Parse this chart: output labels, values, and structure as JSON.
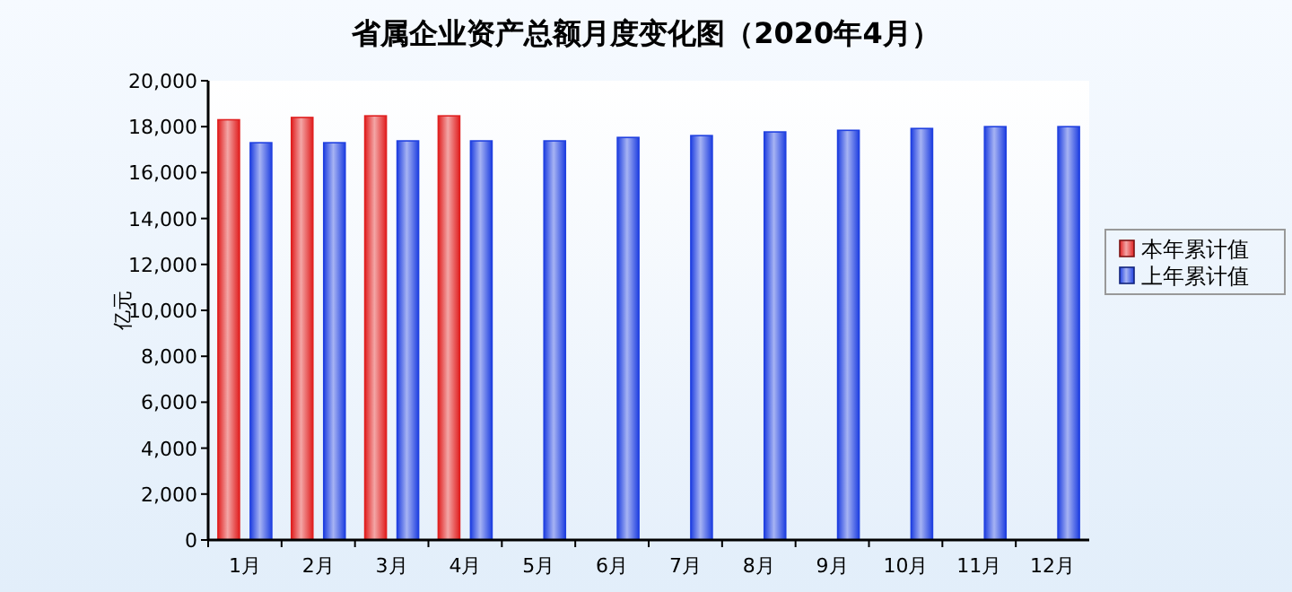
{
  "chart_data": {
    "type": "bar",
    "title": "省属企业资产总额月度变化图（2020年4月）",
    "ylabel": "亿元",
    "categories": [
      "1月",
      "2月",
      "3月",
      "4月",
      "5月",
      "6月",
      "7月",
      "8月",
      "9月",
      "10月",
      "11月",
      "12月"
    ],
    "series": [
      {
        "name": "本年累计值",
        "color": "#e02020",
        "values": [
          18300,
          18400,
          18470,
          18470,
          null,
          null,
          null,
          null,
          null,
          null,
          null,
          null
        ]
      },
      {
        "name": "上年累计值",
        "color": "#2040e0",
        "values": [
          17300,
          17300,
          17380,
          17380,
          17380,
          17530,
          17610,
          17770,
          17840,
          17920,
          18000,
          18000
        ]
      }
    ],
    "ylim": [
      0,
      20000
    ],
    "yticks": [
      {
        "value": 0,
        "label": "0"
      },
      {
        "value": 2000,
        "label": "2,000"
      },
      {
        "value": 4000,
        "label": "4,000"
      },
      {
        "value": 6000,
        "label": "6,000"
      },
      {
        "value": 8000,
        "label": "8,000"
      },
      {
        "value": 10000,
        "label": "10,000"
      },
      {
        "value": 12000,
        "label": "12,000"
      },
      {
        "value": 14000,
        "label": "14,000"
      },
      {
        "value": 16000,
        "label": "16,000"
      },
      {
        "value": 18000,
        "label": "18,000"
      },
      {
        "value": 20000,
        "label": "20,000"
      }
    ],
    "grid": false,
    "legend": "right"
  }
}
